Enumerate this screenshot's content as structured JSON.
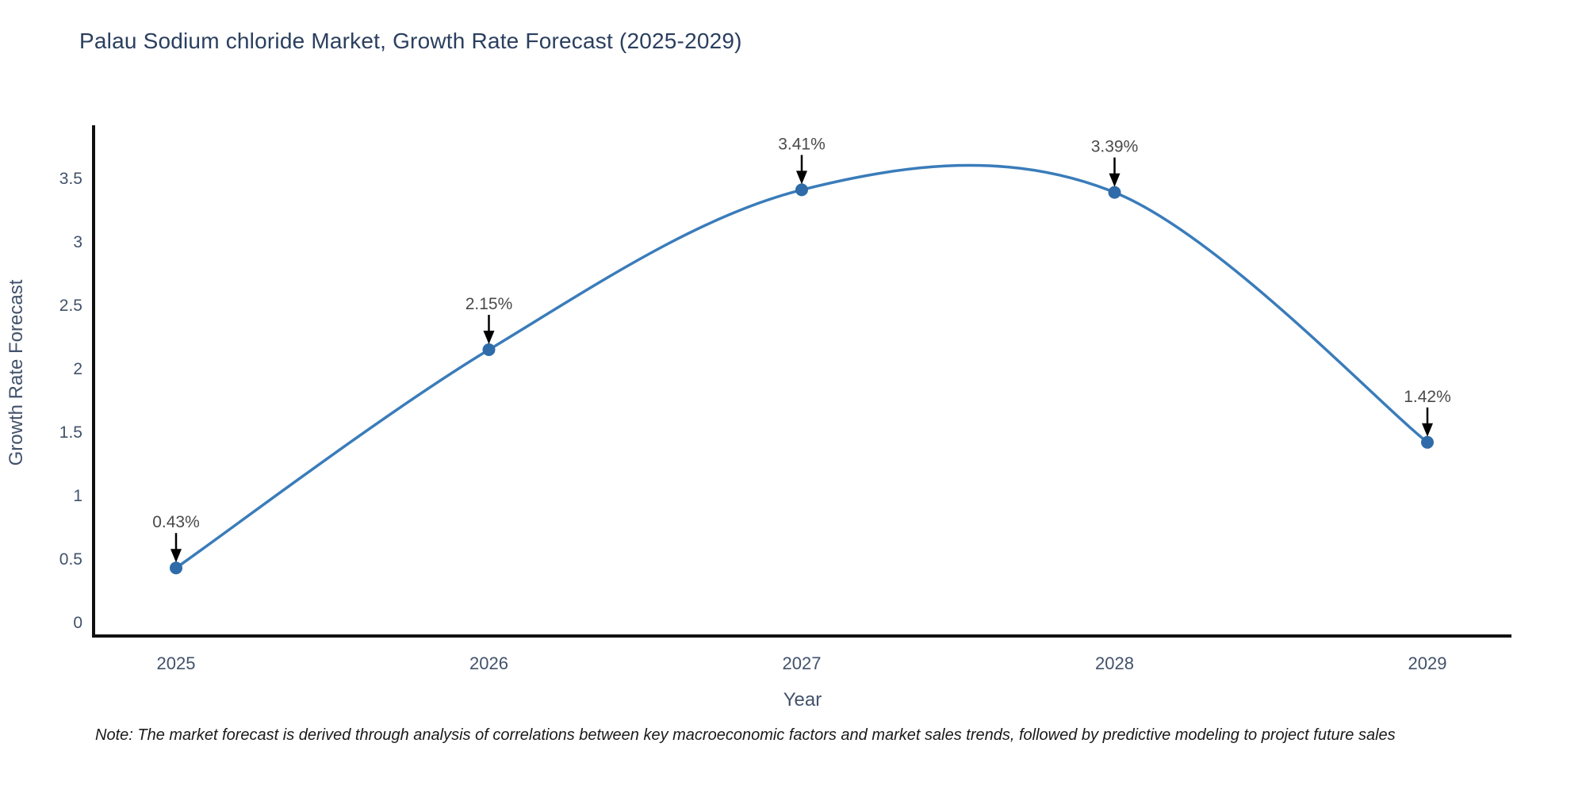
{
  "page": {
    "note": "Note: The market forecast is derived through analysis of correlations between key macroeconomic factors and market sales trends, followed by predictive modeling to project future sales"
  },
  "chart_data": {
    "type": "line",
    "title": "Palau Sodium chloride Market, Growth Rate Forecast (2025-2029)",
    "xlabel": "Year",
    "ylabel": "Growth Rate Forecast",
    "categories": [
      "2025",
      "2026",
      "2027",
      "2028",
      "2029"
    ],
    "values": [
      0.43,
      2.15,
      3.41,
      3.39,
      1.42
    ],
    "point_labels": [
      "0.43%",
      "2.15%",
      "3.41%",
      "3.39%",
      "1.42%"
    ],
    "yticks": [
      0,
      0.5,
      1,
      1.5,
      2,
      2.5,
      3,
      3.5
    ],
    "ylim": [
      0,
      3.92
    ],
    "line_shape": "spline",
    "grid": false,
    "legend_position": "none",
    "annotation_style": "value label above point with black down arrow",
    "colors": {
      "line": "#3a7cba",
      "marker": "#2f6ba8",
      "axis": "#111111",
      "tick_label": "#42526b",
      "axis_title": "#42526b",
      "title": "#2a3f5f",
      "annotation": "#4a4a4a",
      "arrow": "#000000"
    }
  }
}
